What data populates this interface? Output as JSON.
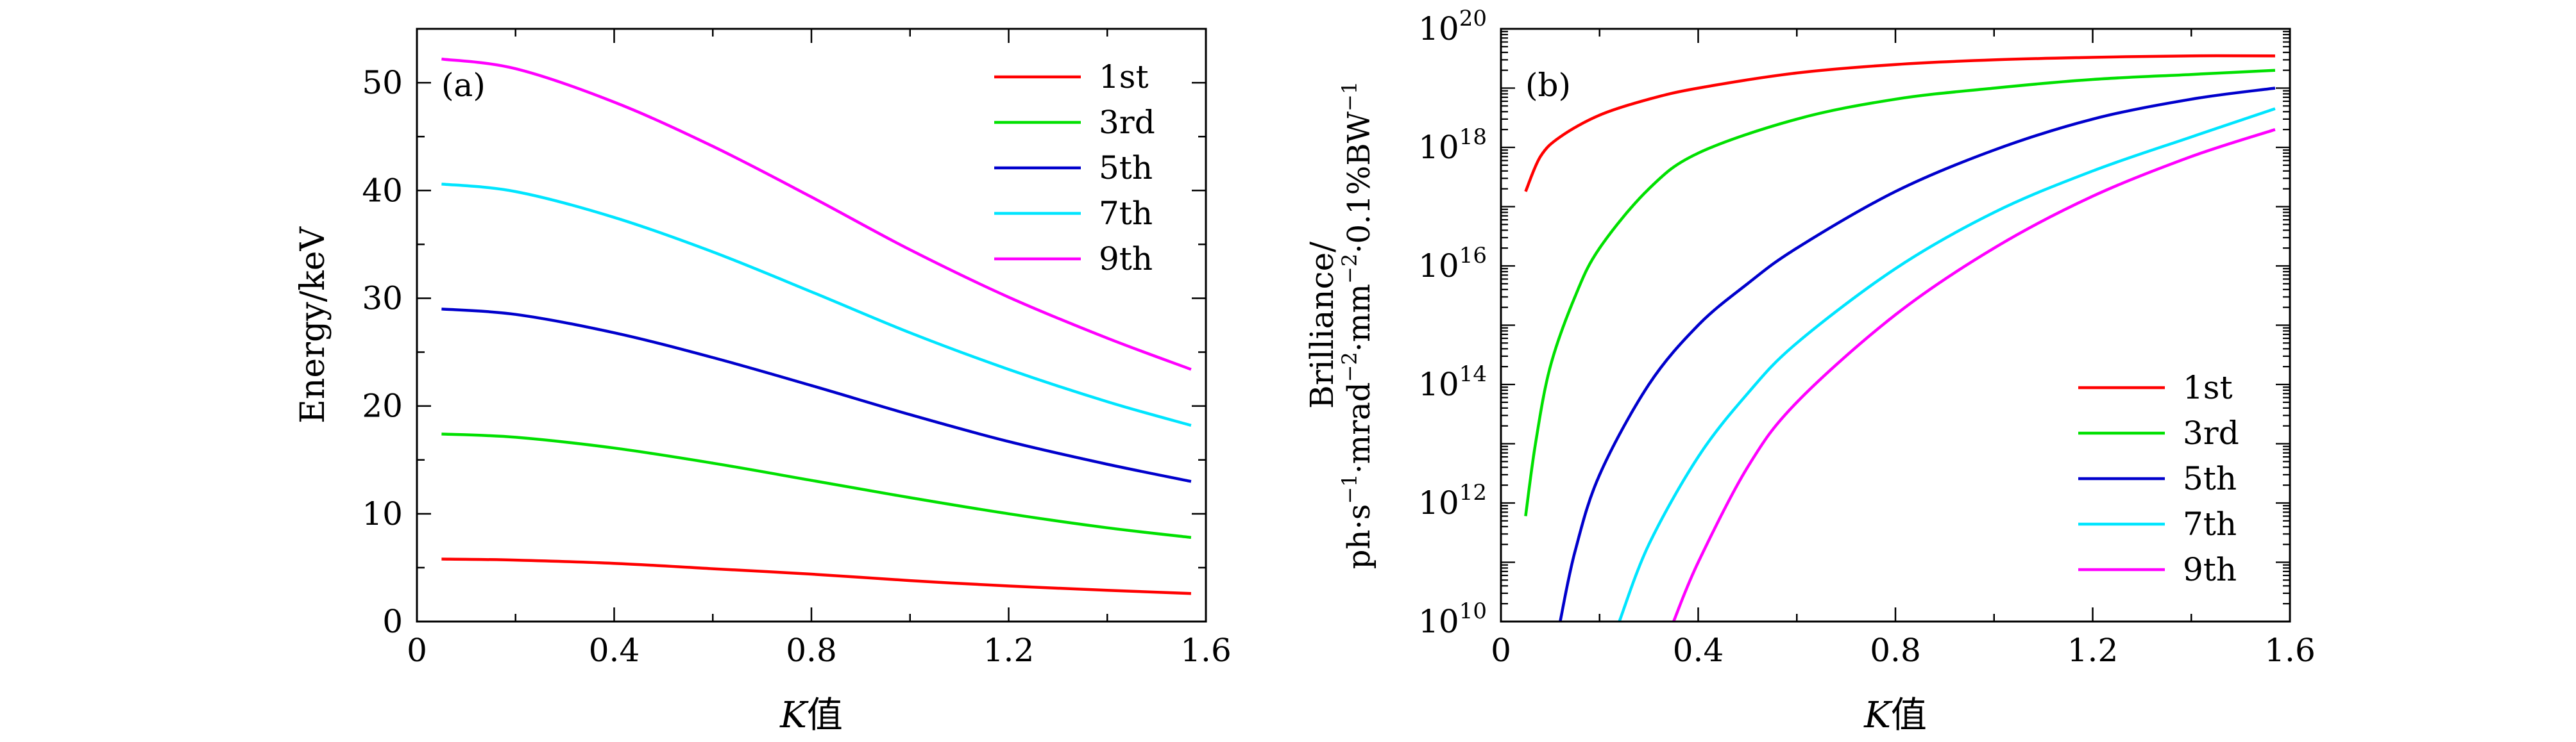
{
  "chart_data": [
    {
      "type": "line",
      "panel_label": "(a)",
      "xlabel_var": "K",
      "xlabel_suffix": "值",
      "ylabel": "Energy/keV",
      "xlim": [
        0,
        1.6
      ],
      "ylim": [
        0,
        55
      ],
      "xticks": [
        {
          "value": 0,
          "label": "0"
        },
        {
          "value": 0.4,
          "label": "0.4"
        },
        {
          "value": 0.8,
          "label": "0.8"
        },
        {
          "value": 1.2,
          "label": "1.2"
        },
        {
          "value": 1.6,
          "label": "1.6"
        }
      ],
      "yticks": [
        {
          "value": 0,
          "label": "0"
        },
        {
          "value": 10,
          "label": "10"
        },
        {
          "value": 20,
          "label": "20"
        },
        {
          "value": 30,
          "label": "30"
        },
        {
          "value": 40,
          "label": "40"
        },
        {
          "value": 50,
          "label": "50"
        }
      ],
      "grid": false,
      "legend_position": "top-right",
      "x": [
        0.05,
        0.2,
        0.4,
        0.6,
        0.8,
        1.0,
        1.2,
        1.4,
        1.57
      ],
      "series": [
        {
          "name": "1st",
          "color": "#ff0000",
          "values": [
            5.8,
            5.7,
            5.4,
            4.9,
            4.4,
            3.8,
            3.3,
            2.9,
            2.6
          ]
        },
        {
          "name": "3rd",
          "color": "#00e000",
          "values": [
            17.4,
            17.1,
            16.1,
            14.7,
            13.1,
            11.5,
            10.0,
            8.7,
            7.8
          ]
        },
        {
          "name": "5th",
          "color": "#0000cc",
          "values": [
            29.0,
            28.5,
            26.8,
            24.5,
            21.9,
            19.2,
            16.7,
            14.6,
            13.0
          ]
        },
        {
          "name": "7th",
          "color": "#00e5ff",
          "values": [
            40.6,
            39.9,
            37.5,
            34.3,
            30.6,
            26.8,
            23.4,
            20.4,
            18.2
          ]
        },
        {
          "name": "9th",
          "color": "#ff00ff",
          "values": [
            52.2,
            51.3,
            48.2,
            44.1,
            39.4,
            34.5,
            30.1,
            26.3,
            23.4
          ]
        }
      ]
    },
    {
      "type": "line",
      "panel_label": "(b)",
      "xlabel_var": "K",
      "xlabel_suffix": "值",
      "ylabel_line1": "Brilliance/",
      "ylabel_line2_parts": [
        {
          "text": "ph·s",
          "sup": false
        },
        {
          "text": "−1",
          "sup": true
        },
        {
          "text": "·mrad",
          "sup": false
        },
        {
          "text": "−2",
          "sup": true
        },
        {
          "text": "·mm",
          "sup": false
        },
        {
          "text": "−2",
          "sup": true
        },
        {
          "text": "·0.1%BW",
          "sup": false
        },
        {
          "text": "−1",
          "sup": true
        }
      ],
      "yscale": "log",
      "xlim": [
        0,
        1.6
      ],
      "ylim_exponent": [
        10,
        20
      ],
      "xticks": [
        {
          "value": 0,
          "label": "0"
        },
        {
          "value": 0.4,
          "label": "0.4"
        },
        {
          "value": 0.8,
          "label": "0.8"
        },
        {
          "value": 1.2,
          "label": "1.2"
        },
        {
          "value": 1.6,
          "label": "1.6"
        }
      ],
      "yticks": [
        {
          "exp": 10,
          "base": "10",
          "sup": "10"
        },
        {
          "exp": 12,
          "base": "10",
          "sup": "12"
        },
        {
          "exp": 14,
          "base": "10",
          "sup": "14"
        },
        {
          "exp": 16,
          "base": "10",
          "sup": "16"
        },
        {
          "exp": 18,
          "base": "10",
          "sup": "18"
        },
        {
          "exp": 20,
          "base": "10",
          "sup": "20"
        }
      ],
      "grid": false,
      "legend_position": "bottom-right",
      "series": [
        {
          "name": "1st",
          "color": "#ff0000",
          "x": [
            0.05,
            0.08,
            0.12,
            0.2,
            0.3,
            0.4,
            0.6,
            0.8,
            1.0,
            1.2,
            1.4,
            1.57
          ],
          "values": [
            1.8e+17,
            7e+17,
            1.5e+18,
            3.5e+18,
            6.5e+18,
            1e+19,
            1.8e+19,
            2.5e+19,
            3e+19,
            3.3e+19,
            3.5e+19,
            3.5e+19
          ]
        },
        {
          "name": "3rd",
          "color": "#00e000",
          "x": [
            0.05,
            0.07,
            0.1,
            0.15,
            0.2,
            0.3,
            0.4,
            0.6,
            0.8,
            1.0,
            1.2,
            1.4,
            1.57
          ],
          "values": [
            600000000000.0,
            10000000000000.0,
            200000000000000.0,
            3000000000000000.0,
            2e+16,
            2e+17,
            8e+17,
            3e+18,
            6.5e+18,
            1e+19,
            1.4e+19,
            1.7e+19,
            2e+19
          ]
        },
        {
          "name": "5th",
          "color": "#0000cc",
          "x": [
            0.12,
            0.15,
            0.2,
            0.3,
            0.4,
            0.5,
            0.6,
            0.8,
            1.0,
            1.2,
            1.4,
            1.57
          ],
          "values": [
            10000000000.0,
            150000000000.0,
            3000000000000.0,
            100000000000000.0,
            1000000000000000.0,
            5000000000000000.0,
            2e+16,
            1.8e+17,
            9e+17,
            3e+18,
            6.5e+18,
            1e+19
          ]
        },
        {
          "name": "7th",
          "color": "#00e5ff",
          "x": [
            0.24,
            0.3,
            0.4,
            0.5,
            0.6,
            0.8,
            1.0,
            1.2,
            1.4,
            1.57
          ],
          "values": [
            10000000000.0,
            200000000000.0,
            6000000000000.0,
            70000000000000.0,
            500000000000000.0,
            9000000000000000.0,
            8e+16,
            4e+17,
            1.5e+18,
            4.5e+18
          ]
        },
        {
          "name": "9th",
          "color": "#ff00ff",
          "x": [
            0.35,
            0.4,
            0.5,
            0.6,
            0.8,
            1.0,
            1.2,
            1.4,
            1.57
          ],
          "values": [
            10000000000.0,
            100000000000.0,
            4000000000000.0,
            50000000000000.0,
            1500000000000000.0,
            2e+16,
            1.5e+17,
            7e+17,
            2e+18
          ]
        }
      ]
    }
  ]
}
